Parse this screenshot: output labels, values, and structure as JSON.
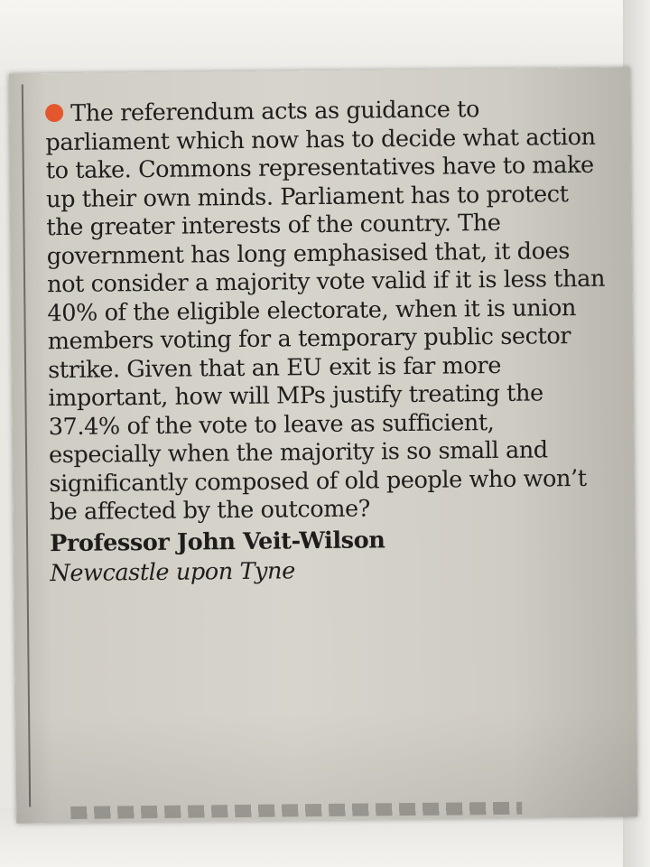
{
  "letter": {
    "bullet_color": "#e4572e",
    "body": "The referendum acts as guidance to parliament which now has to decide what action to take. Commons representatives have to make up their own minds. Parliament has to protect the greater interests of the country. The government has long emphasised that, it does not consider a majority vote valid if it is less than 40% of the eligible electorate, when it is union members voting for a temporary public sector strike. Given that an EU exit is far more important, how will MPs justify treating the 37.4% of the vote to leave as sufficient, especially when the majority is so small and significantly composed of old people who won’t be affected by the outcome?",
    "author": "Professor John Veit-Wilson",
    "location": "Newcastle upon Tyne"
  }
}
